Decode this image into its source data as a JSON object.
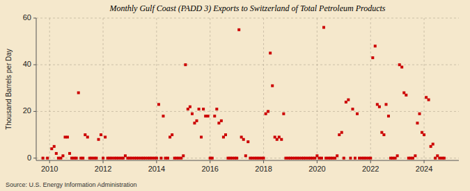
{
  "chart_data": {
    "type": "scatter",
    "title": "Monthly Gulf Coast (PADD 3) Exports to Switzerland of Total Petroleum Products",
    "y_label": "Thousand Barrels per Day",
    "annotations": [
      "Source: U.S. Energy Information Administration"
    ],
    "color": "#cc0000",
    "marker": "square",
    "grid": true,
    "xlim": [
      2009.5,
      2025.3
    ],
    "xticks": [
      2010,
      2012,
      2014,
      2016,
      2018,
      2020,
      2022,
      2024
    ],
    "ylim": [
      -1,
      60
    ],
    "yticks": [
      0,
      20,
      40,
      60
    ],
    "x": [
      2009.75,
      2009.92,
      2010.08,
      2010.17,
      2010.25,
      2010.33,
      2010.42,
      2010.5,
      2010.58,
      2010.67,
      2010.75,
      2010.83,
      2010.92,
      2011.0,
      2011.08,
      2011.17,
      2011.25,
      2011.33,
      2011.42,
      2011.5,
      2011.58,
      2011.67,
      2011.75,
      2011.83,
      2011.92,
      2012.0,
      2012.08,
      2012.17,
      2012.25,
      2012.33,
      2012.42,
      2012.5,
      2012.58,
      2012.67,
      2012.75,
      2012.83,
      2012.92,
      2013.0,
      2013.08,
      2013.17,
      2013.25,
      2013.33,
      2013.42,
      2013.5,
      2013.58,
      2013.67,
      2013.75,
      2013.83,
      2013.92,
      2014.0,
      2014.08,
      2014.17,
      2014.25,
      2014.33,
      2014.42,
      2014.5,
      2014.58,
      2014.67,
      2014.75,
      2014.83,
      2014.92,
      2015.0,
      2015.08,
      2015.17,
      2015.25,
      2015.33,
      2015.42,
      2015.5,
      2015.58,
      2015.67,
      2015.75,
      2015.83,
      2015.92,
      2016.0,
      2016.08,
      2016.17,
      2016.25,
      2016.33,
      2016.42,
      2016.5,
      2016.58,
      2016.67,
      2016.75,
      2016.83,
      2016.92,
      2017.0,
      2017.08,
      2017.17,
      2017.25,
      2017.33,
      2017.42,
      2017.5,
      2017.58,
      2017.67,
      2017.75,
      2017.83,
      2017.92,
      2018.0,
      2018.08,
      2018.17,
      2018.25,
      2018.33,
      2018.42,
      2018.5,
      2018.58,
      2018.67,
      2018.75,
      2018.83,
      2018.92,
      2019.0,
      2019.08,
      2019.17,
      2019.25,
      2019.33,
      2019.42,
      2019.5,
      2019.58,
      2019.67,
      2019.75,
      2019.83,
      2019.92,
      2020.0,
      2020.08,
      2020.17,
      2020.25,
      2020.33,
      2020.42,
      2020.5,
      2020.58,
      2020.67,
      2020.75,
      2020.83,
      2020.92,
      2021.0,
      2021.08,
      2021.17,
      2021.25,
      2021.33,
      2021.42,
      2021.5,
      2021.58,
      2021.67,
      2021.75,
      2021.83,
      2021.92,
      2022.0,
      2022.08,
      2022.17,
      2022.25,
      2022.33,
      2022.42,
      2022.5,
      2022.58,
      2022.67,
      2022.75,
      2022.83,
      2022.92,
      2023.0,
      2023.08,
      2023.17,
      2023.25,
      2023.33,
      2023.42,
      2023.5,
      2023.58,
      2023.67,
      2023.75,
      2023.83,
      2023.92,
      2024.0,
      2024.08,
      2024.17,
      2024.25,
      2024.33,
      2024.42,
      2024.5,
      2024.58,
      2024.67,
      2024.75
    ],
    "values": [
      0,
      0,
      4,
      5,
      2,
      0,
      0,
      1,
      9,
      9,
      2,
      0,
      0,
      0,
      28,
      0,
      0,
      10,
      9,
      0,
      0,
      0,
      0,
      8,
      10,
      0,
      9,
      0,
      0,
      0,
      0,
      0,
      0,
      0,
      0,
      1,
      0,
      0,
      0,
      0,
      0,
      0,
      0,
      0,
      0,
      0,
      0,
      0,
      0,
      0,
      23,
      0,
      18,
      0,
      0,
      9,
      10,
      0,
      0,
      0,
      0,
      1,
      40,
      21,
      22,
      19,
      15,
      16,
      21,
      9,
      21,
      18,
      18,
      0,
      0,
      18,
      21,
      15,
      16,
      9,
      10,
      0,
      0,
      0,
      0,
      0,
      55,
      9,
      8,
      1,
      7,
      0,
      0,
      0,
      0,
      0,
      0,
      0,
      19,
      20,
      45,
      31,
      9,
      8,
      9,
      8,
      19,
      0,
      0,
      0,
      0,
      0,
      0,
      0,
      0,
      0,
      0,
      0,
      0,
      0,
      0,
      1,
      0,
      0,
      56,
      0,
      0,
      0,
      0,
      0,
      1,
      10,
      11,
      0,
      24,
      25,
      0,
      21,
      0,
      19,
      0,
      0,
      0,
      0,
      0,
      0,
      43,
      48,
      23,
      22,
      11,
      10,
      23,
      18,
      0,
      0,
      0,
      1,
      40,
      39,
      28,
      27,
      0,
      0,
      0,
      1,
      15,
      19,
      11,
      10,
      26,
      25,
      5,
      6,
      0,
      1,
      0,
      0,
      0
    ]
  }
}
